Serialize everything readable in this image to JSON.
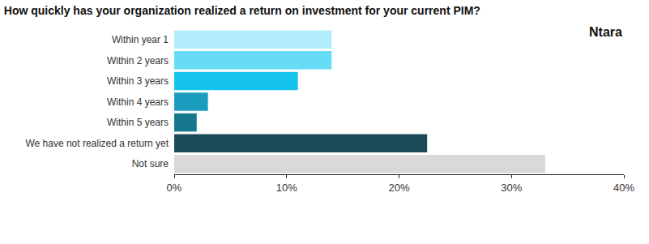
{
  "chart_data": {
    "type": "bar",
    "orientation": "horizontal",
    "title": "How quickly has your organization realized a return on investment for your current PIM?",
    "categories": [
      "Within year 1",
      "Within 2 years",
      "Within 3 years",
      "Within 4 years",
      "Within 5 years",
      "We have not realized a return yet",
      "Not sure"
    ],
    "values": [
      14,
      14,
      11,
      3,
      2,
      22.5,
      33
    ],
    "colors": [
      "#b3ecfa",
      "#66dcf7",
      "#14c4ee",
      "#1a9cbf",
      "#17788d",
      "#1b4a59",
      "#d9d9d9"
    ],
    "xlim": [
      0,
      40
    ],
    "xticks": [
      {
        "value": 0,
        "label": "0%"
      },
      {
        "value": 10,
        "label": "10%"
      },
      {
        "value": 20,
        "label": "20%"
      },
      {
        "value": 30,
        "label": "30%"
      },
      {
        "value": 40,
        "label": "40%"
      }
    ],
    "grid": false,
    "annotations": [
      "Ntara"
    ]
  }
}
